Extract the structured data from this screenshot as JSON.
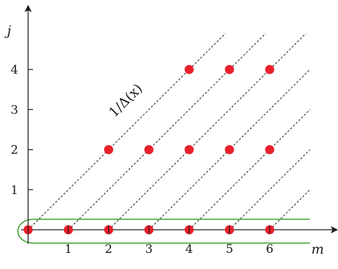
{
  "chart_data": {
    "type": "scatter",
    "xlabel": "m",
    "ylabel": "j",
    "x_ticks": [
      "1",
      "2",
      "3",
      "4",
      "5",
      "6"
    ],
    "y_ticks": [
      "1",
      "2",
      "3",
      "4"
    ],
    "xlim": [
      0,
      7.6
    ],
    "ylim": [
      -0.3,
      5.6
    ],
    "grid": false,
    "colors": {
      "point": "#e8202a",
      "highlight": "#3aa02e",
      "diagonal": "#1a1a1a",
      "axis": "#1a1a1a"
    },
    "series": [
      {
        "points": [
          {
            "m": 0,
            "j": 0
          },
          {
            "m": 1,
            "j": 0
          },
          {
            "m": 2,
            "j": 0
          },
          {
            "m": 3,
            "j": 0
          },
          {
            "m": 4,
            "j": 0
          },
          {
            "m": 5,
            "j": 0
          },
          {
            "m": 6,
            "j": 0
          },
          {
            "m": 2,
            "j": 2
          },
          {
            "m": 3,
            "j": 2
          },
          {
            "m": 4,
            "j": 2
          },
          {
            "m": 5,
            "j": 2
          },
          {
            "m": 6,
            "j": 2
          },
          {
            "m": 4,
            "j": 4
          },
          {
            "m": 5,
            "j": 4
          },
          {
            "m": 6,
            "j": 4
          }
        ]
      }
    ],
    "diagonal_lines": {
      "slope": 1,
      "intercepts_m": [
        0,
        1,
        2,
        3,
        4,
        5,
        6,
        7
      ]
    },
    "highlight_row": {
      "j": 0,
      "m_range": [
        0,
        7
      ]
    },
    "annotations": [
      {
        "text": "1/Δ(x)",
        "m": 2.5,
        "j": 3.15,
        "rotate_deg": -45
      }
    ]
  }
}
